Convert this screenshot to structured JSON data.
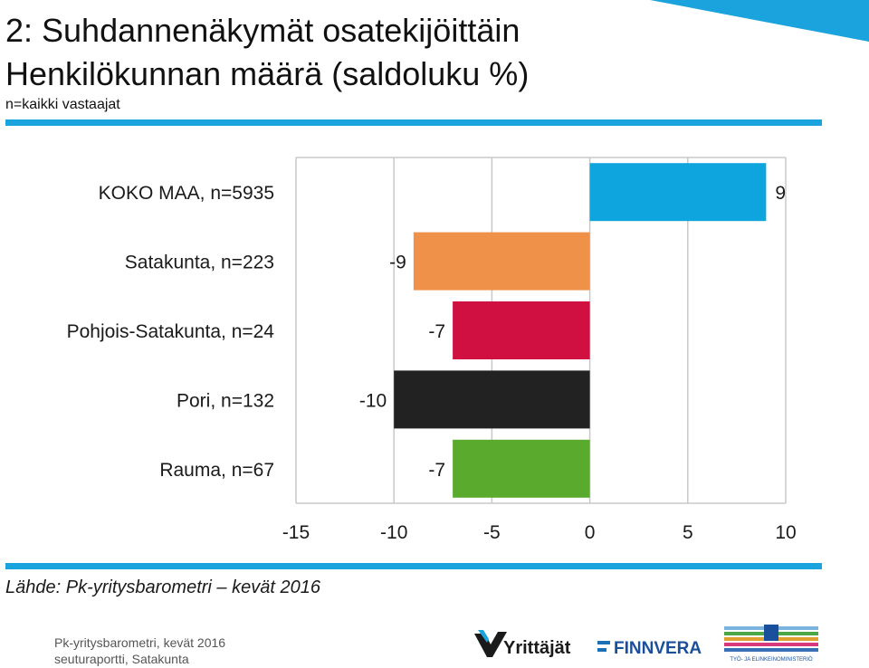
{
  "header": {
    "title": "2: Suhdannenäkymät osatekijöittäin",
    "title2": "Henkilökunnan määrä (saldoluku %)",
    "subtitle": "n=kaikki vastaajat"
  },
  "colors": {
    "accent": "#1aa3dd",
    "series": [
      "#0ea5df",
      "#f0914a",
      "#cf1040",
      "#222222",
      "#5aaa2e"
    ]
  },
  "chart_data": {
    "type": "bar",
    "orientation": "horizontal",
    "categories": [
      "KOKO MAA, n=5935",
      "Satakunta, n=223",
      "Pohjois-Satakunta, n=24",
      "Pori, n=132",
      "Rauma, n=67"
    ],
    "values": [
      9,
      -9,
      -7,
      -10,
      -7
    ],
    "value_labels": [
      "9",
      "-9",
      "-7",
      "-10",
      "-7"
    ],
    "xlim": [
      -15,
      10
    ],
    "xticks": [
      "-15",
      "-10",
      "-5",
      "0",
      "5",
      "10"
    ],
    "grid": true,
    "legend": "none"
  },
  "footer": {
    "source": "Lähde: Pk-yritysbarometri – kevät 2016",
    "line1": "Pk-yritysbarometri, kevät 2016",
    "line2": "seuturaportti, Satakunta"
  },
  "logos": {
    "yrittajat": "Yrittäjät",
    "finnvera": "FINNVERA",
    "ministry": "TYÖ- JA ELINKEINOMINISTERIÖ"
  }
}
